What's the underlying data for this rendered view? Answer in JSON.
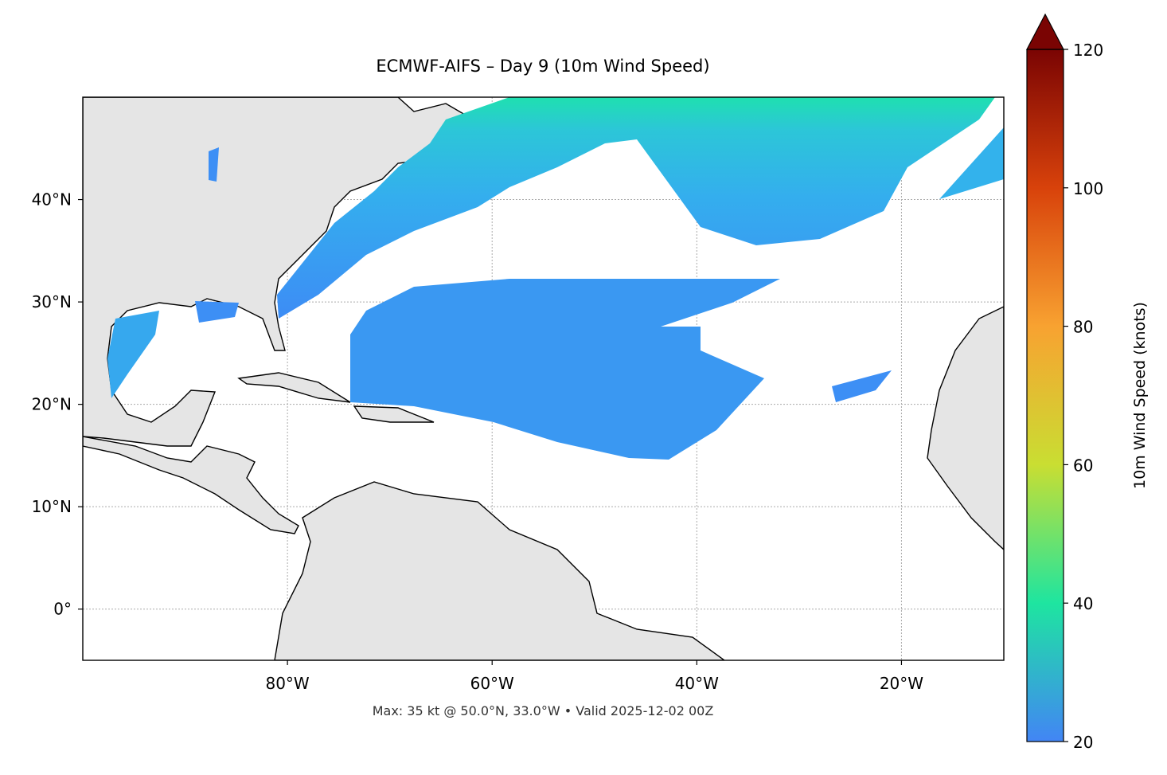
{
  "chart_data": {
    "type": "map",
    "title": "ECMWF-AIFS – Day 9 (10m Wind Speed)",
    "footer": "Max: 35 kt @ 50.0°N, 33.0°W • Valid 2025-12-02 00Z",
    "xlim": [
      -100,
      -10
    ],
    "ylim": [
      -5,
      50
    ],
    "xticks": [
      {
        "value": -80,
        "label": "80°W"
      },
      {
        "value": -60,
        "label": "60°W"
      },
      {
        "value": -40,
        "label": "40°W"
      },
      {
        "value": -20,
        "label": "20°W"
      }
    ],
    "yticks": [
      {
        "value": 0,
        "label": "0°"
      },
      {
        "value": 10,
        "label": "10°N"
      },
      {
        "value": 20,
        "label": "20°N"
      },
      {
        "value": 30,
        "label": "30°N"
      },
      {
        "value": 40,
        "label": "40°N"
      }
    ],
    "grid": true,
    "colorbar": {
      "label": "10m Wind Speed (knots)",
      "lim": [
        20,
        120
      ],
      "ticks": [
        20,
        40,
        60,
        80,
        100,
        120
      ],
      "colors": [
        "#4285f5",
        "#1ee5a0",
        "#c9de32",
        "#f8a231",
        "#d8420b",
        "#7a0403"
      ],
      "extend": "max"
    }
  }
}
